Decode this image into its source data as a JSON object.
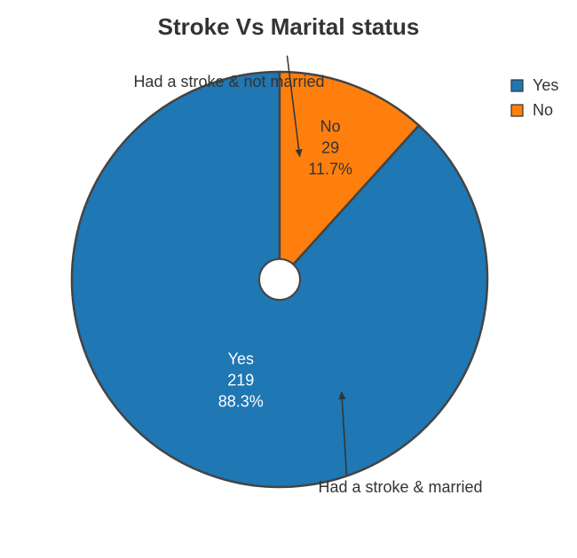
{
  "chart_data": {
    "type": "pie",
    "title": "Stroke Vs Marital status",
    "slices": [
      {
        "label": "Yes",
        "value": 219,
        "percent": "88.3%",
        "color": "#1f77b4",
        "text_color": "#ffffff"
      },
      {
        "label": "No",
        "value": 29,
        "percent": "11.7%",
        "color": "#ff7f0e",
        "text_color": "#333333"
      }
    ],
    "legend": {
      "placement": "top-right",
      "entries": [
        "Yes",
        "No"
      ]
    },
    "annotations": [
      {
        "text": "Had a stroke & not married",
        "points_to": "No"
      },
      {
        "text": "Had a stroke & married",
        "points_to": "Yes"
      }
    ],
    "hole": true,
    "direction": "clockwise",
    "start": "top"
  }
}
